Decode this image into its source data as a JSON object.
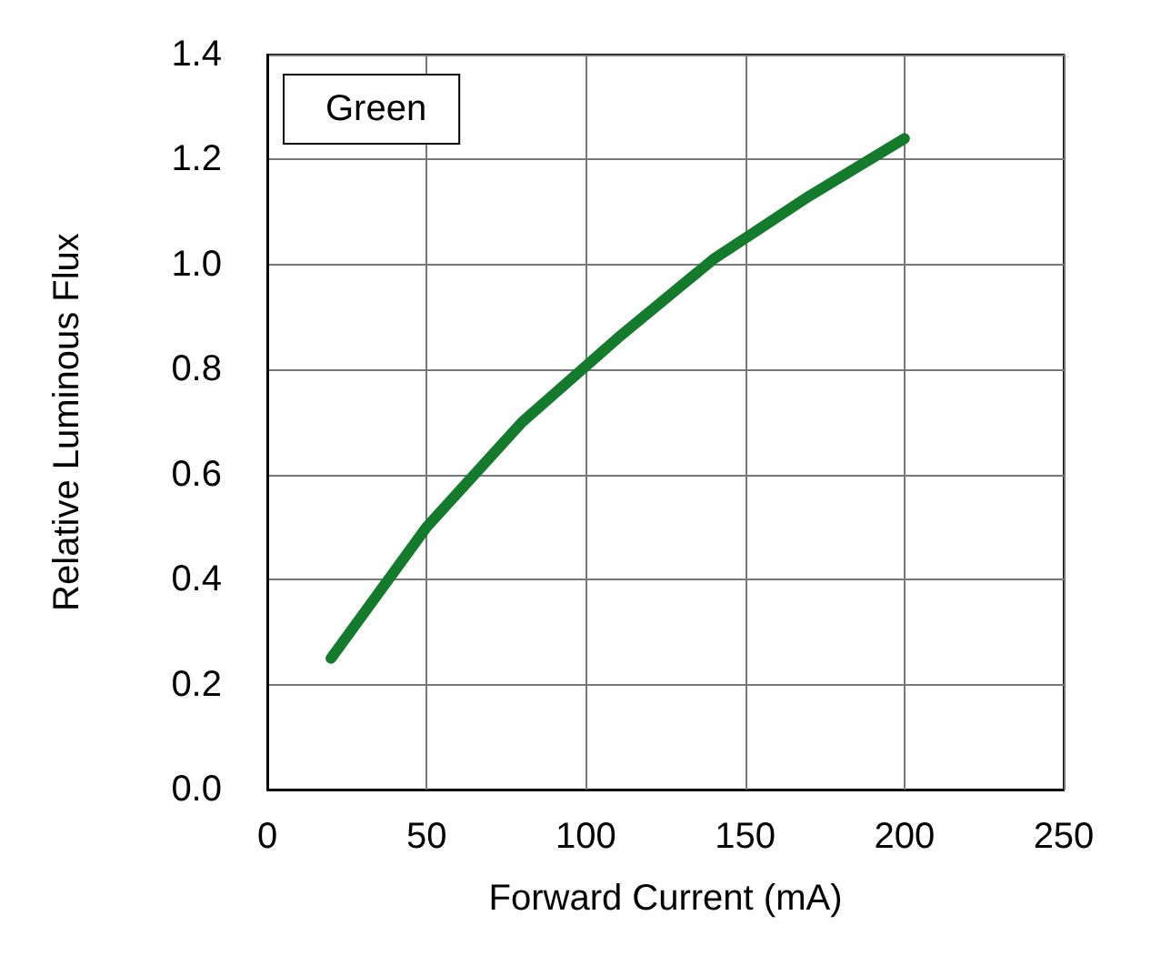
{
  "chart_data": {
    "type": "line",
    "xlabel": "Forward Current (mA)",
    "ylabel": "Relative Luminous Flux",
    "x": [
      20,
      50,
      80,
      110,
      140,
      170,
      200
    ],
    "series": [
      {
        "name": "Green",
        "color": "#147a2c",
        "values": [
          0.25,
          0.5,
          0.7,
          0.86,
          1.01,
          1.13,
          1.24
        ]
      }
    ],
    "xlim": [
      0,
      250
    ],
    "xticks": [
      0,
      50,
      100,
      150,
      200,
      250
    ],
    "ylim": [
      0,
      1.4
    ],
    "yticks": [
      {
        "value": 0,
        "label": "0.0"
      },
      0.2,
      0.4,
      0.6,
      0.8,
      {
        "value": 1,
        "label": "1.0"
      },
      1.2,
      1.4
    ],
    "grid": true,
    "legend": "top left",
    "marker": "none",
    "line_style": "solid"
  }
}
